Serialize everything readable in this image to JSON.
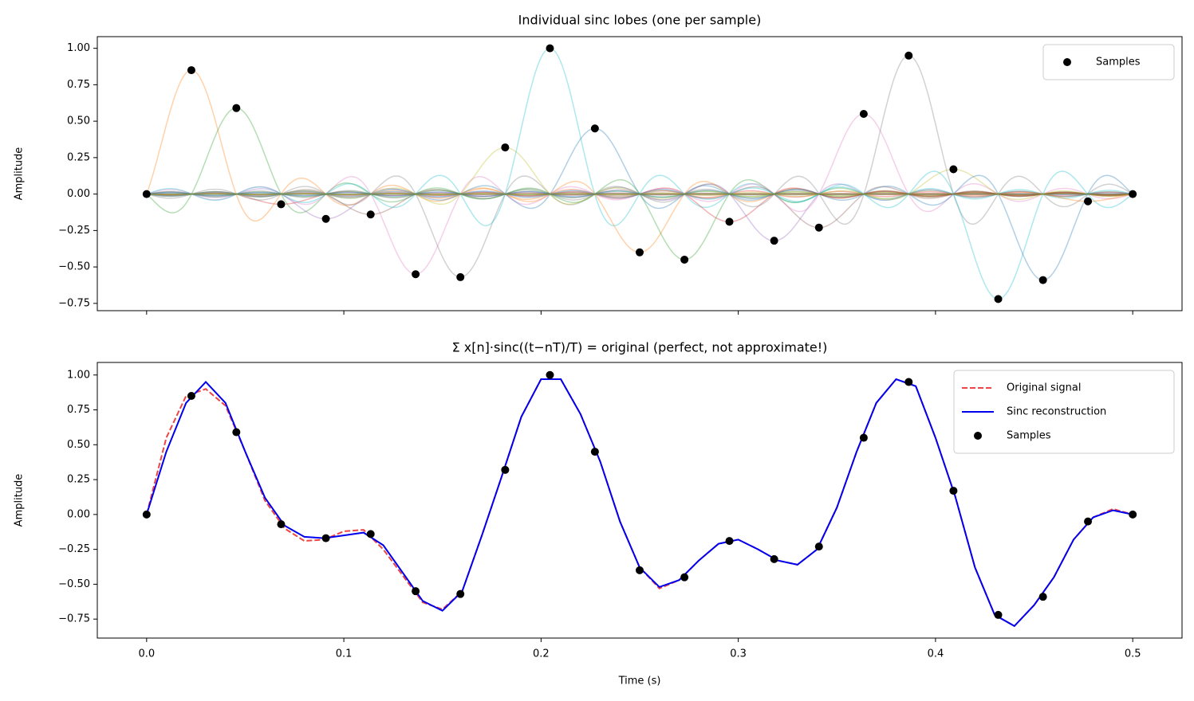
{
  "chart_data": [
    {
      "type": "sinc-lobes",
      "title": "Individual sinc lobes (one per sample)",
      "ylabel": "Amplitude",
      "lobe_colors": [
        "#1f77b4",
        "#ff7f0e",
        "#2ca02c",
        "#d62728",
        "#9467bd",
        "#8c564b",
        "#e377c2",
        "#7f7f7f",
        "#bcbd22",
        "#17becf"
      ],
      "samples": {
        "name": "Samples",
        "color": "#000000",
        "x": [
          0,
          0.0227,
          0.0455,
          0.0682,
          0.0909,
          0.1136,
          0.1364,
          0.1591,
          0.1818,
          0.2045,
          0.2273,
          0.25,
          0.2727,
          0.2955,
          0.3182,
          0.3409,
          0.3636,
          0.3864,
          0.4091,
          0.4318,
          0.4545,
          0.4773,
          0.5
        ],
        "values": [
          0,
          0.85,
          0.59,
          -0.07,
          -0.17,
          -0.14,
          -0.55,
          -0.57,
          0.32,
          1.0,
          0.45,
          -0.4,
          -0.45,
          -0.19,
          -0.32,
          -0.23,
          0.55,
          0.95,
          0.17,
          -0.72,
          -0.59,
          -0.05,
          0
        ]
      },
      "xlim": [
        -0.025,
        0.525
      ],
      "ylim": [
        -0.8,
        1.08
      ],
      "yticks": [
        {
          "value": -0.75,
          "label": "−0.75"
        },
        {
          "value": -0.5,
          "label": "−0.50"
        },
        {
          "value": -0.25,
          "label": "−0.25"
        },
        {
          "value": 0,
          "label": "0.00"
        },
        {
          "value": 0.25,
          "label": "0.25"
        },
        {
          "value": 0.5,
          "label": "0.50"
        },
        {
          "value": 0.75,
          "label": "0.75"
        },
        {
          "value": 1.0,
          "label": "1.00"
        }
      ],
      "legend": "upper right"
    },
    {
      "type": "line",
      "title": "Σ x[n]·sinc((t−nT)/T) = original (perfect, not approximate!)",
      "xlabel": "Time (s)",
      "ylabel": "Amplitude",
      "x": [
        0,
        0.01,
        0.02,
        0.03,
        0.04,
        0.05,
        0.06,
        0.07,
        0.08,
        0.09,
        0.1,
        0.11,
        0.12,
        0.13,
        0.14,
        0.15,
        0.16,
        0.17,
        0.18,
        0.19,
        0.2,
        0.21,
        0.22,
        0.23,
        0.24,
        0.25,
        0.26,
        0.27,
        0.28,
        0.29,
        0.3,
        0.31,
        0.32,
        0.33,
        0.34,
        0.35,
        0.36,
        0.37,
        0.38,
        0.39,
        0.4,
        0.41,
        0.42,
        0.43,
        0.44,
        0.45,
        0.46,
        0.47,
        0.48,
        0.49,
        0.5
      ],
      "series": [
        {
          "name": "Original signal",
          "color": "#ef4444",
          "dashed": true,
          "values": [
            0,
            0.55,
            0.85,
            0.9,
            0.78,
            0.45,
            0.1,
            -0.1,
            -0.19,
            -0.18,
            -0.12,
            -0.11,
            -0.25,
            -0.44,
            -0.63,
            -0.68,
            -0.55,
            -0.15,
            0.27,
            0.7,
            0.97,
            0.97,
            0.72,
            0.38,
            -0.05,
            -0.38,
            -0.53,
            -0.47,
            -0.33,
            -0.21,
            -0.18,
            -0.25,
            -0.33,
            -0.36,
            -0.25,
            0.05,
            0.45,
            0.8,
            0.97,
            0.92,
            0.55,
            0.13,
            -0.38,
            -0.72,
            -0.8,
            -0.65,
            -0.45,
            -0.18,
            -0.02,
            0.04,
            0
          ]
        },
        {
          "name": "Sinc reconstruction",
          "color": "#0000ee",
          "dashed": false,
          "values": [
            0,
            0.45,
            0.8,
            0.95,
            0.8,
            0.45,
            0.12,
            -0.08,
            -0.16,
            -0.17,
            -0.15,
            -0.13,
            -0.22,
            -0.42,
            -0.62,
            -0.69,
            -0.55,
            -0.15,
            0.27,
            0.7,
            0.97,
            0.97,
            0.72,
            0.38,
            -0.05,
            -0.38,
            -0.52,
            -0.47,
            -0.33,
            -0.21,
            -0.18,
            -0.25,
            -0.33,
            -0.36,
            -0.25,
            0.05,
            0.45,
            0.8,
            0.97,
            0.92,
            0.55,
            0.13,
            -0.38,
            -0.72,
            -0.8,
            -0.65,
            -0.45,
            -0.18,
            -0.02,
            0.03,
            0
          ]
        }
      ],
      "xlim": [
        -0.025,
        0.525
      ],
      "ylim": [
        -0.886,
        1.09
      ],
      "xticks": [
        {
          "value": 0,
          "label": "0.0"
        },
        0.1,
        0.2,
        0.3,
        0.4,
        0.5
      ],
      "yticks": [
        {
          "value": -0.75,
          "label": "−0.75"
        },
        {
          "value": -0.5,
          "label": "−0.50"
        },
        {
          "value": -0.25,
          "label": "−0.25"
        },
        {
          "value": 0,
          "label": "0.00"
        },
        {
          "value": 0.25,
          "label": "0.25"
        },
        {
          "value": 0.5,
          "label": "0.50"
        },
        {
          "value": 0.75,
          "label": "0.75"
        },
        {
          "value": 1.0,
          "label": "1.00"
        }
      ],
      "legend": "upper right"
    }
  ]
}
